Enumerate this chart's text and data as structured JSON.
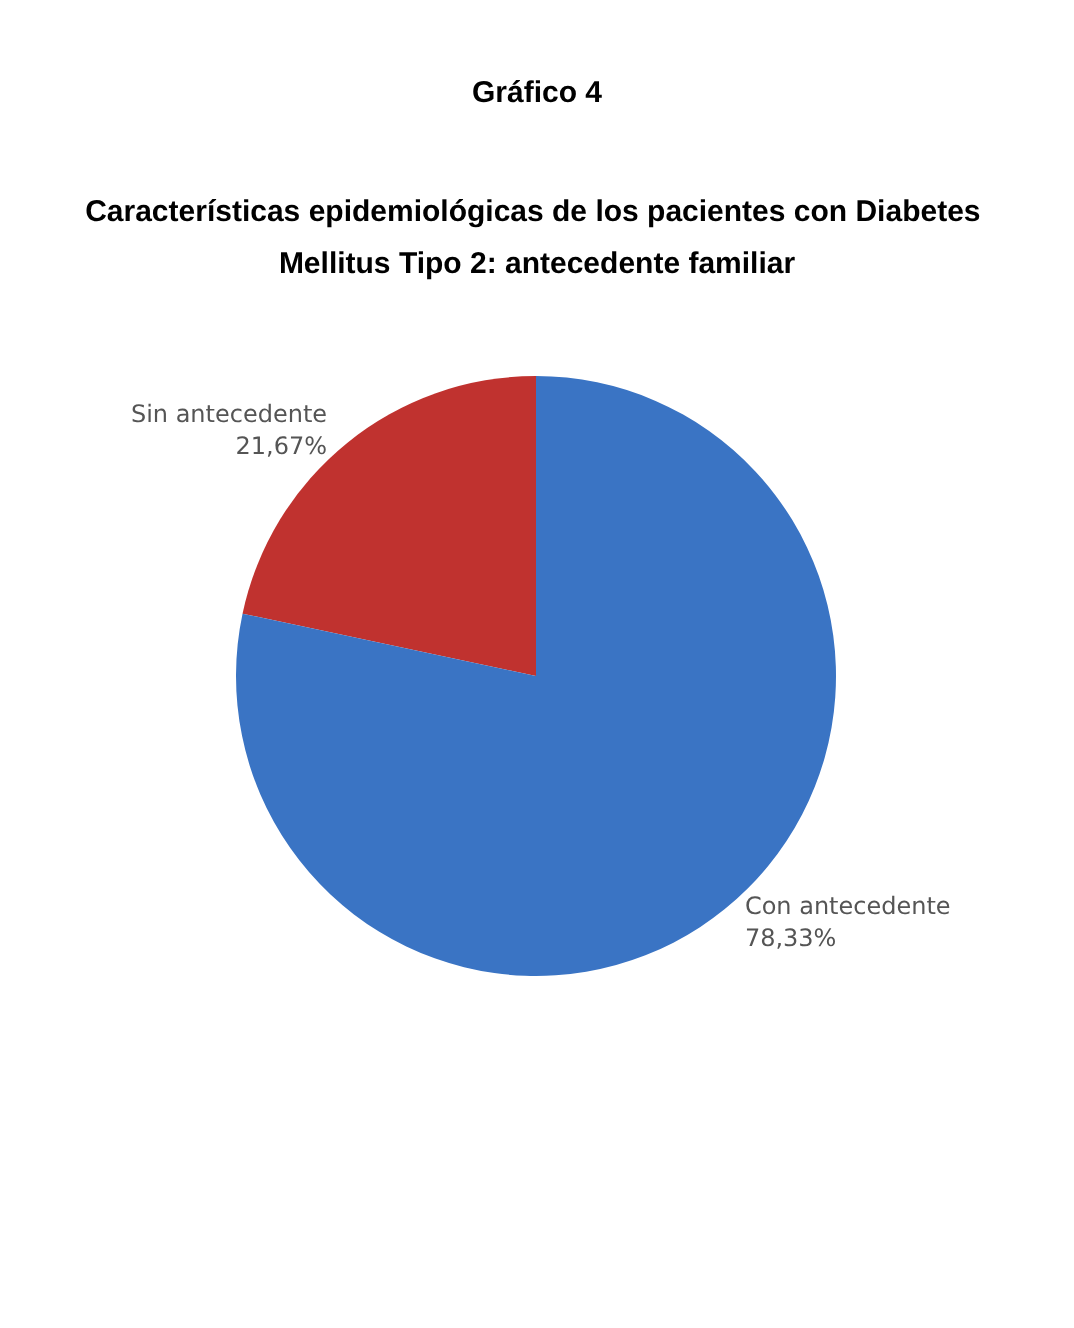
{
  "chart_data": {
    "type": "pie",
    "title": "Gráfico 4",
    "subtitle": "Características epidemiológicas de los pacientes con Diabetes Mellitus Tipo 2: antecedente familiar",
    "categories": [
      "Sin antecedente",
      "Con antecedente"
    ],
    "values": [
      21.67,
      78.33
    ],
    "colors": [
      "#c0322f",
      "#3a74c4"
    ],
    "value_labels": [
      "21,67%",
      "78,33%"
    ],
    "legend": false
  }
}
